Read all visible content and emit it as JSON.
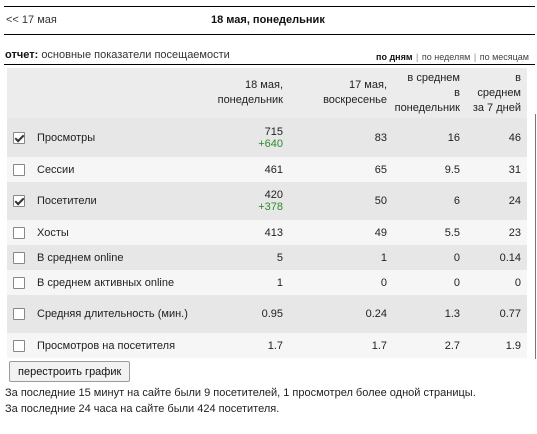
{
  "nav": {
    "prev_label": "<< 17 мая",
    "title": "18 мая, понедельник"
  },
  "report": {
    "label": "отчет:",
    "description": "основные показатели посещаемости",
    "periods": {
      "days": "по дням",
      "weeks": "по неделям",
      "months": "по месяцам",
      "separator": "|",
      "active": "days"
    }
  },
  "table": {
    "headers": [
      [
        "18 мая,",
        "понедельник"
      ],
      [
        "17 мая,",
        "воскресенье"
      ],
      [
        "в среднем",
        "в",
        "понедельник"
      ],
      [
        "в",
        "среднем",
        "за 7 дней"
      ]
    ],
    "rows": [
      {
        "label": "Просмотры",
        "checked": true,
        "values": [
          "715",
          "83",
          "16",
          "46"
        ],
        "delta": "+640"
      },
      {
        "label": "Сессии",
        "checked": false,
        "values": [
          "461",
          "65",
          "9.5",
          "31"
        ],
        "delta": ""
      },
      {
        "label": "Посетители",
        "checked": true,
        "values": [
          "420",
          "50",
          "6",
          "24"
        ],
        "delta": "+378"
      },
      {
        "label": "Хосты",
        "checked": false,
        "values": [
          "413",
          "49",
          "5.5",
          "23"
        ],
        "delta": ""
      },
      {
        "label": "В среднем online",
        "checked": false,
        "values": [
          "5",
          "1",
          "0",
          "0.14"
        ],
        "delta": ""
      },
      {
        "label": "В среднем активных online",
        "checked": false,
        "values": [
          "1",
          "0",
          "0",
          "0"
        ],
        "delta": ""
      },
      {
        "label": "Средняя длительность (мин.)",
        "checked": false,
        "values": [
          "0.95",
          "0.24",
          "1.3",
          "0.77"
        ],
        "delta": ""
      },
      {
        "label": "Просмотров на посетителя",
        "checked": false,
        "values": [
          "1.7",
          "1.7",
          "2.7",
          "1.9"
        ],
        "delta": ""
      }
    ]
  },
  "button": {
    "rebuild_label": "перестроить график"
  },
  "info": {
    "line1": "За последние 15 минут на сайте были 9 посетителей, 1 просмотрел более одной страницы.",
    "line2": "За последние 24 часа на сайте были 424 посетителя."
  },
  "colors": {
    "delta": "#2c8a2c",
    "row_light": "#f6f6f6",
    "row_dark": "#e7e7e7",
    "header_bg": "#ececec"
  }
}
